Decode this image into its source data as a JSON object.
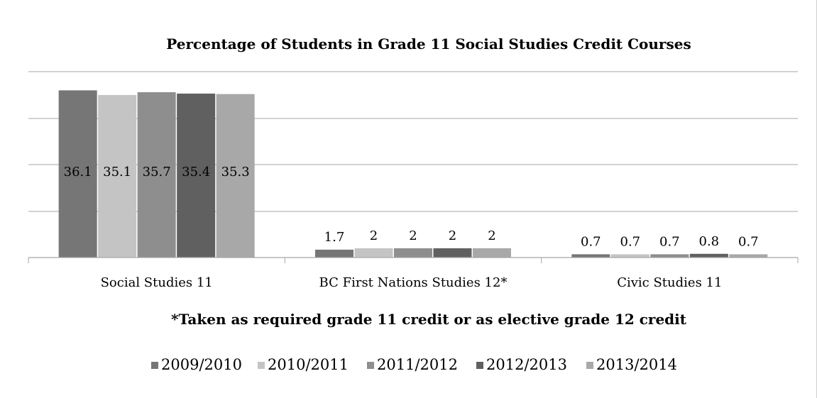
{
  "chart_data": {
    "type": "bar",
    "title": "Percentage of Students in Grade 11 Social Studies Credit Courses",
    "note": "*Taken as required grade 11 credit or as elective grade 12 credit",
    "categories": [
      "Social Studies 11",
      "BC First Nations Studies 12*",
      "Civic Studies 11"
    ],
    "series": [
      {
        "name": "2009/2010",
        "values": [
          36.1,
          1.7,
          0.7
        ],
        "color": "#767676"
      },
      {
        "name": "2010/2011",
        "values": [
          35.1,
          2,
          0.7
        ],
        "color": "#c4c4c4"
      },
      {
        "name": "2011/2012",
        "values": [
          35.7,
          2,
          0.7
        ],
        "color": "#8e8e8e"
      },
      {
        "name": "2012/2013",
        "values": [
          35.4,
          2,
          0.8
        ],
        "color": "#606060"
      },
      {
        "name": "2013/2014",
        "values": [
          35.3,
          2,
          0.7
        ],
        "color": "#a8a8a8"
      }
    ],
    "ylim": [
      0,
      36
    ],
    "gridlines": true,
    "legend_position": "bottom",
    "xlabel": "",
    "ylabel": ""
  }
}
